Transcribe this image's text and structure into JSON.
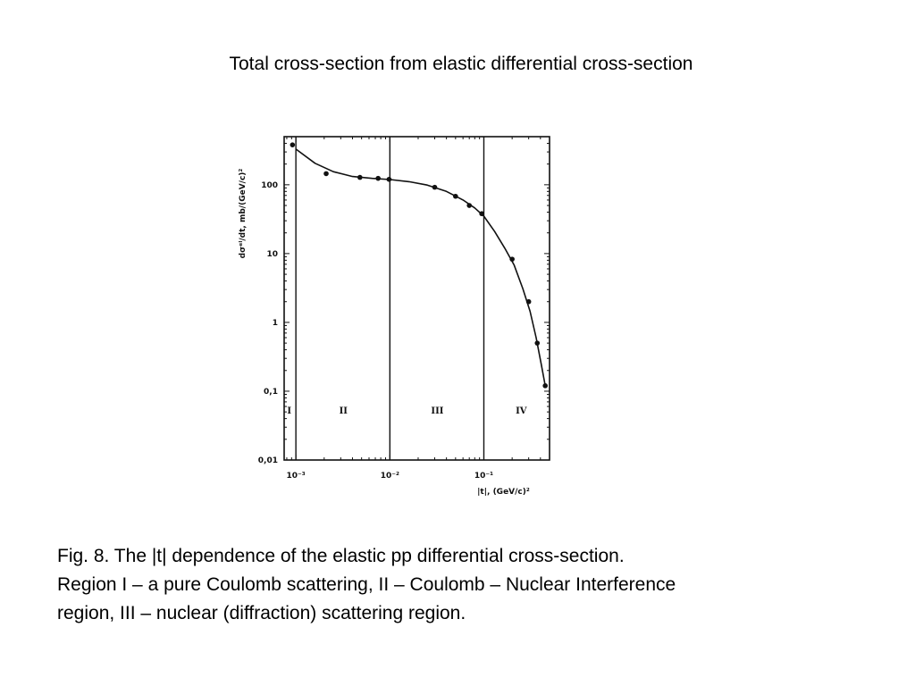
{
  "slide": {
    "title": "Total cross-section from elastic differential cross-section",
    "caption_lines": [
      "Fig. 8. The |t| dependence of the elastic pp differential cross-section.",
      "Region I – a pure Coulomb scattering, II – Coulomb – Nuclear Interference",
      "region, III – nuclear (diffraction) scattering region."
    ]
  },
  "chart_data": {
    "type": "scatter",
    "title": "",
    "xlabel": "|t|, (GeV/c)²",
    "ylabel": "dσᵉˡ/dt, mb/(GeV/c)²",
    "x_scale": "log",
    "y_scale": "log",
    "xlim": [
      0.00075,
      0.5
    ],
    "ylim": [
      0.01,
      500
    ],
    "x_ticks": [
      {
        "value": 0.001,
        "label": "10⁻³"
      },
      {
        "value": 0.01,
        "label": "10⁻²"
      },
      {
        "value": 0.1,
        "label": "10⁻¹"
      }
    ],
    "y_ticks": [
      {
        "value": 100,
        "label": "100"
      },
      {
        "value": 10,
        "label": "10"
      },
      {
        "value": 1,
        "label": "1"
      },
      {
        "value": 0.1,
        "label": "0,1"
      },
      {
        "value": 0.01,
        "label": "0,01"
      }
    ],
    "region_boundaries": [
      0.001,
      0.01,
      0.1
    ],
    "regions": [
      {
        "label": "I",
        "x": 0.00085
      },
      {
        "label": "II",
        "x": 0.0032
      },
      {
        "label": "III",
        "x": 0.032
      },
      {
        "label": "IV",
        "x": 0.25
      }
    ],
    "series": [
      {
        "points": [
          {
            "x": 0.00092,
            "y": 380
          },
          {
            "x": 0.0021,
            "y": 145
          },
          {
            "x": 0.0048,
            "y": 128
          },
          {
            "x": 0.0075,
            "y": 124
          },
          {
            "x": 0.0098,
            "y": 120
          },
          {
            "x": 0.03,
            "y": 92
          },
          {
            "x": 0.05,
            "y": 68
          },
          {
            "x": 0.07,
            "y": 50
          },
          {
            "x": 0.095,
            "y": 38
          },
          {
            "x": 0.2,
            "y": 8.3
          },
          {
            "x": 0.3,
            "y": 2.0
          },
          {
            "x": 0.37,
            "y": 0.5
          },
          {
            "x": 0.45,
            "y": 0.12
          }
        ]
      }
    ],
    "curve": [
      {
        "x": 0.001,
        "y": 330
      },
      {
        "x": 0.0016,
        "y": 205
      },
      {
        "x": 0.0025,
        "y": 155
      },
      {
        "x": 0.004,
        "y": 132
      },
      {
        "x": 0.0065,
        "y": 124
      },
      {
        "x": 0.01,
        "y": 119
      },
      {
        "x": 0.016,
        "y": 111
      },
      {
        "x": 0.025,
        "y": 99
      },
      {
        "x": 0.04,
        "y": 80
      },
      {
        "x": 0.06,
        "y": 60
      },
      {
        "x": 0.08,
        "y": 46
      },
      {
        "x": 0.1,
        "y": 35
      },
      {
        "x": 0.13,
        "y": 21
      },
      {
        "x": 0.17,
        "y": 11.5
      },
      {
        "x": 0.21,
        "y": 6.8
      },
      {
        "x": 0.26,
        "y": 3.1
      },
      {
        "x": 0.31,
        "y": 1.45
      },
      {
        "x": 0.36,
        "y": 0.6
      },
      {
        "x": 0.41,
        "y": 0.24
      },
      {
        "x": 0.45,
        "y": 0.12
      }
    ]
  }
}
